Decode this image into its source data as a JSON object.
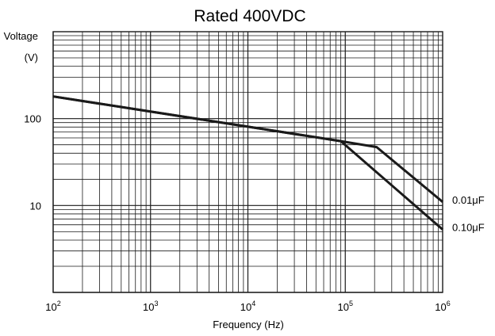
{
  "chart_data": {
    "type": "line",
    "title": "Rated  400VDC",
    "xlabel": "Frequency (Hz)",
    "ylabel": [
      "Voltage",
      "(V)"
    ],
    "x_scale": "log",
    "y_scale": "log",
    "xlim": [
      100,
      1000000
    ],
    "ylim": [
      1,
      1000
    ],
    "grid": true,
    "x_ticks": [
      {
        "base": "10",
        "exp": "2",
        "value": 100
      },
      {
        "base": "10",
        "exp": "3",
        "value": 1000
      },
      {
        "base": "10",
        "exp": "4",
        "value": 10000
      },
      {
        "base": "10",
        "exp": "5",
        "value": 100000
      },
      {
        "base": "10",
        "exp": "6",
        "value": 1000000
      }
    ],
    "y_ticks": [
      {
        "label": "10",
        "value": 10
      },
      {
        "label": "100",
        "value": 100
      }
    ],
    "series": [
      {
        "name": "0.01μF",
        "x": [
          100,
          90000,
          210000,
          1000000
        ],
        "y": [
          180,
          55,
          47,
          11
        ]
      },
      {
        "name": "0.10μF",
        "x": [
          100,
          90000,
          1000000
        ],
        "y": [
          180,
          55,
          5.3
        ]
      }
    ]
  }
}
